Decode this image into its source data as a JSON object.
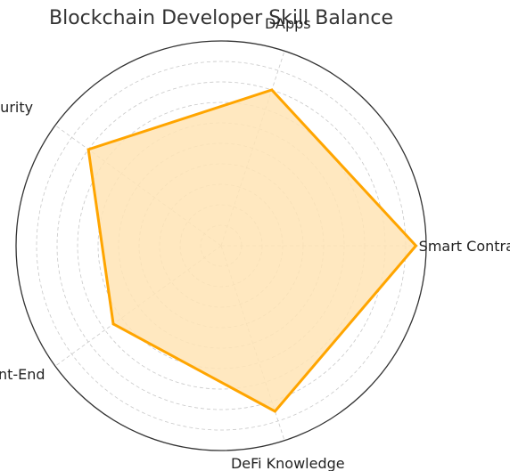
{
  "chart_data": {
    "type": "radar",
    "title": "Blockchain Developer Skill Balance",
    "categories": [
      "Smart Contracts",
      "DApps",
      "Security",
      "Front-End",
      "DeFi Knowledge"
    ],
    "series": [
      {
        "values": [
          9.5,
          8.0,
          8.0,
          6.5,
          8.5
        ],
        "color": "#FFA500",
        "fill": "#FFE4B5"
      }
    ],
    "rlim": [
      0,
      10
    ],
    "rings": [
      1,
      2,
      3,
      4,
      5,
      6,
      7,
      8,
      9
    ],
    "grid": true,
    "grid_style": "dashed",
    "outer_circle_color": "#333333",
    "grid_color": "#c8c8c8"
  }
}
